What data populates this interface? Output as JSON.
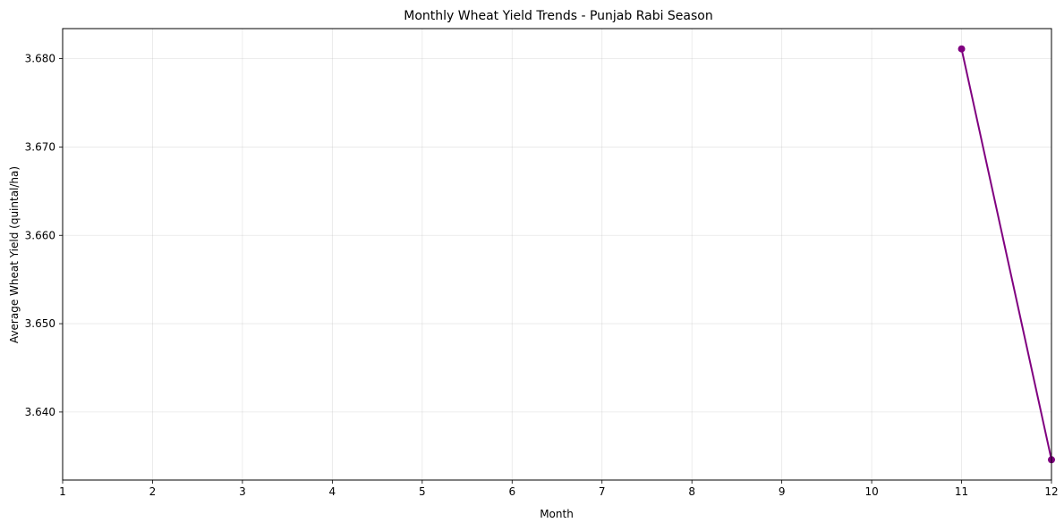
{
  "chart_data": {
    "type": "line",
    "title": "Monthly Wheat Yield Trends - Punjab Rabi Season",
    "xlabel": "Month",
    "ylabel": "Average Wheat Yield (quintal/ha)",
    "x_ticks": [
      1,
      2,
      3,
      4,
      5,
      6,
      7,
      8,
      9,
      10,
      11,
      12
    ],
    "y_ticks": [
      "3.640",
      "3.650",
      "3.660",
      "3.670",
      "3.680"
    ],
    "xlim": [
      1,
      12
    ],
    "ylim": [
      3.6323,
      3.6834
    ],
    "grid": true,
    "legend": "none",
    "series": [
      {
        "color": "#800080",
        "marker": "circle",
        "x": [
          11,
          12
        ],
        "y": [
          3.6811,
          3.6346
        ]
      }
    ]
  }
}
